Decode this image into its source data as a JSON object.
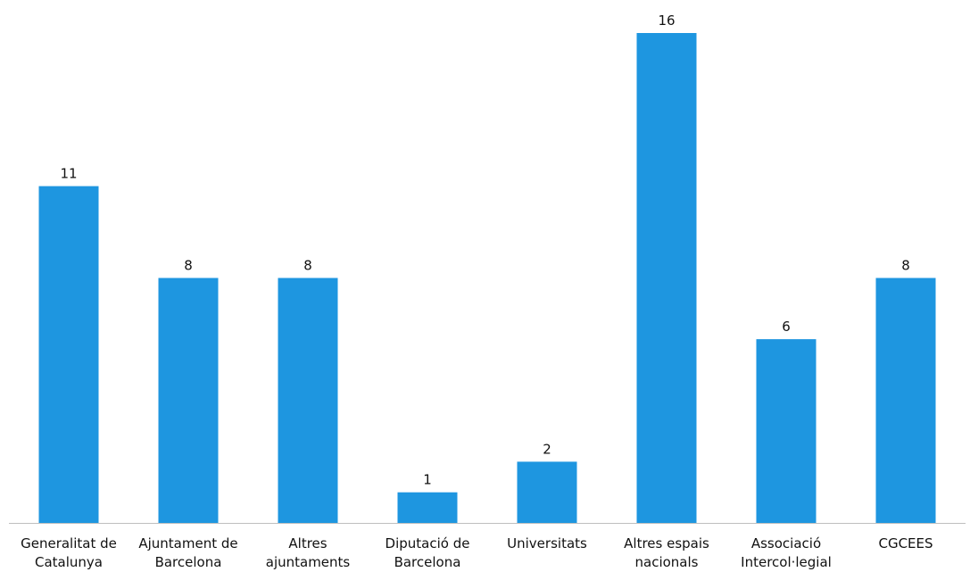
{
  "chart_data": {
    "type": "bar",
    "categories": [
      [
        "Generalitat de",
        "Catalunya"
      ],
      [
        "Ajuntament de",
        "Barcelona"
      ],
      [
        "Altres",
        "ajuntaments"
      ],
      [
        "Diputació de",
        "Barcelona"
      ],
      [
        "Universitats"
      ],
      [
        "Altres espais",
        "nacionals"
      ],
      [
        "Associació",
        "Intercol·legial"
      ],
      [
        "CGCEES"
      ]
    ],
    "values": [
      11,
      8,
      8,
      1,
      2,
      16,
      6,
      8
    ],
    "title": "",
    "xlabel": "",
    "ylabel": "",
    "ylim": [
      0,
      16
    ],
    "grid": false,
    "legend": "none",
    "bar_color": "#1e96e0",
    "data_labels": true
  }
}
